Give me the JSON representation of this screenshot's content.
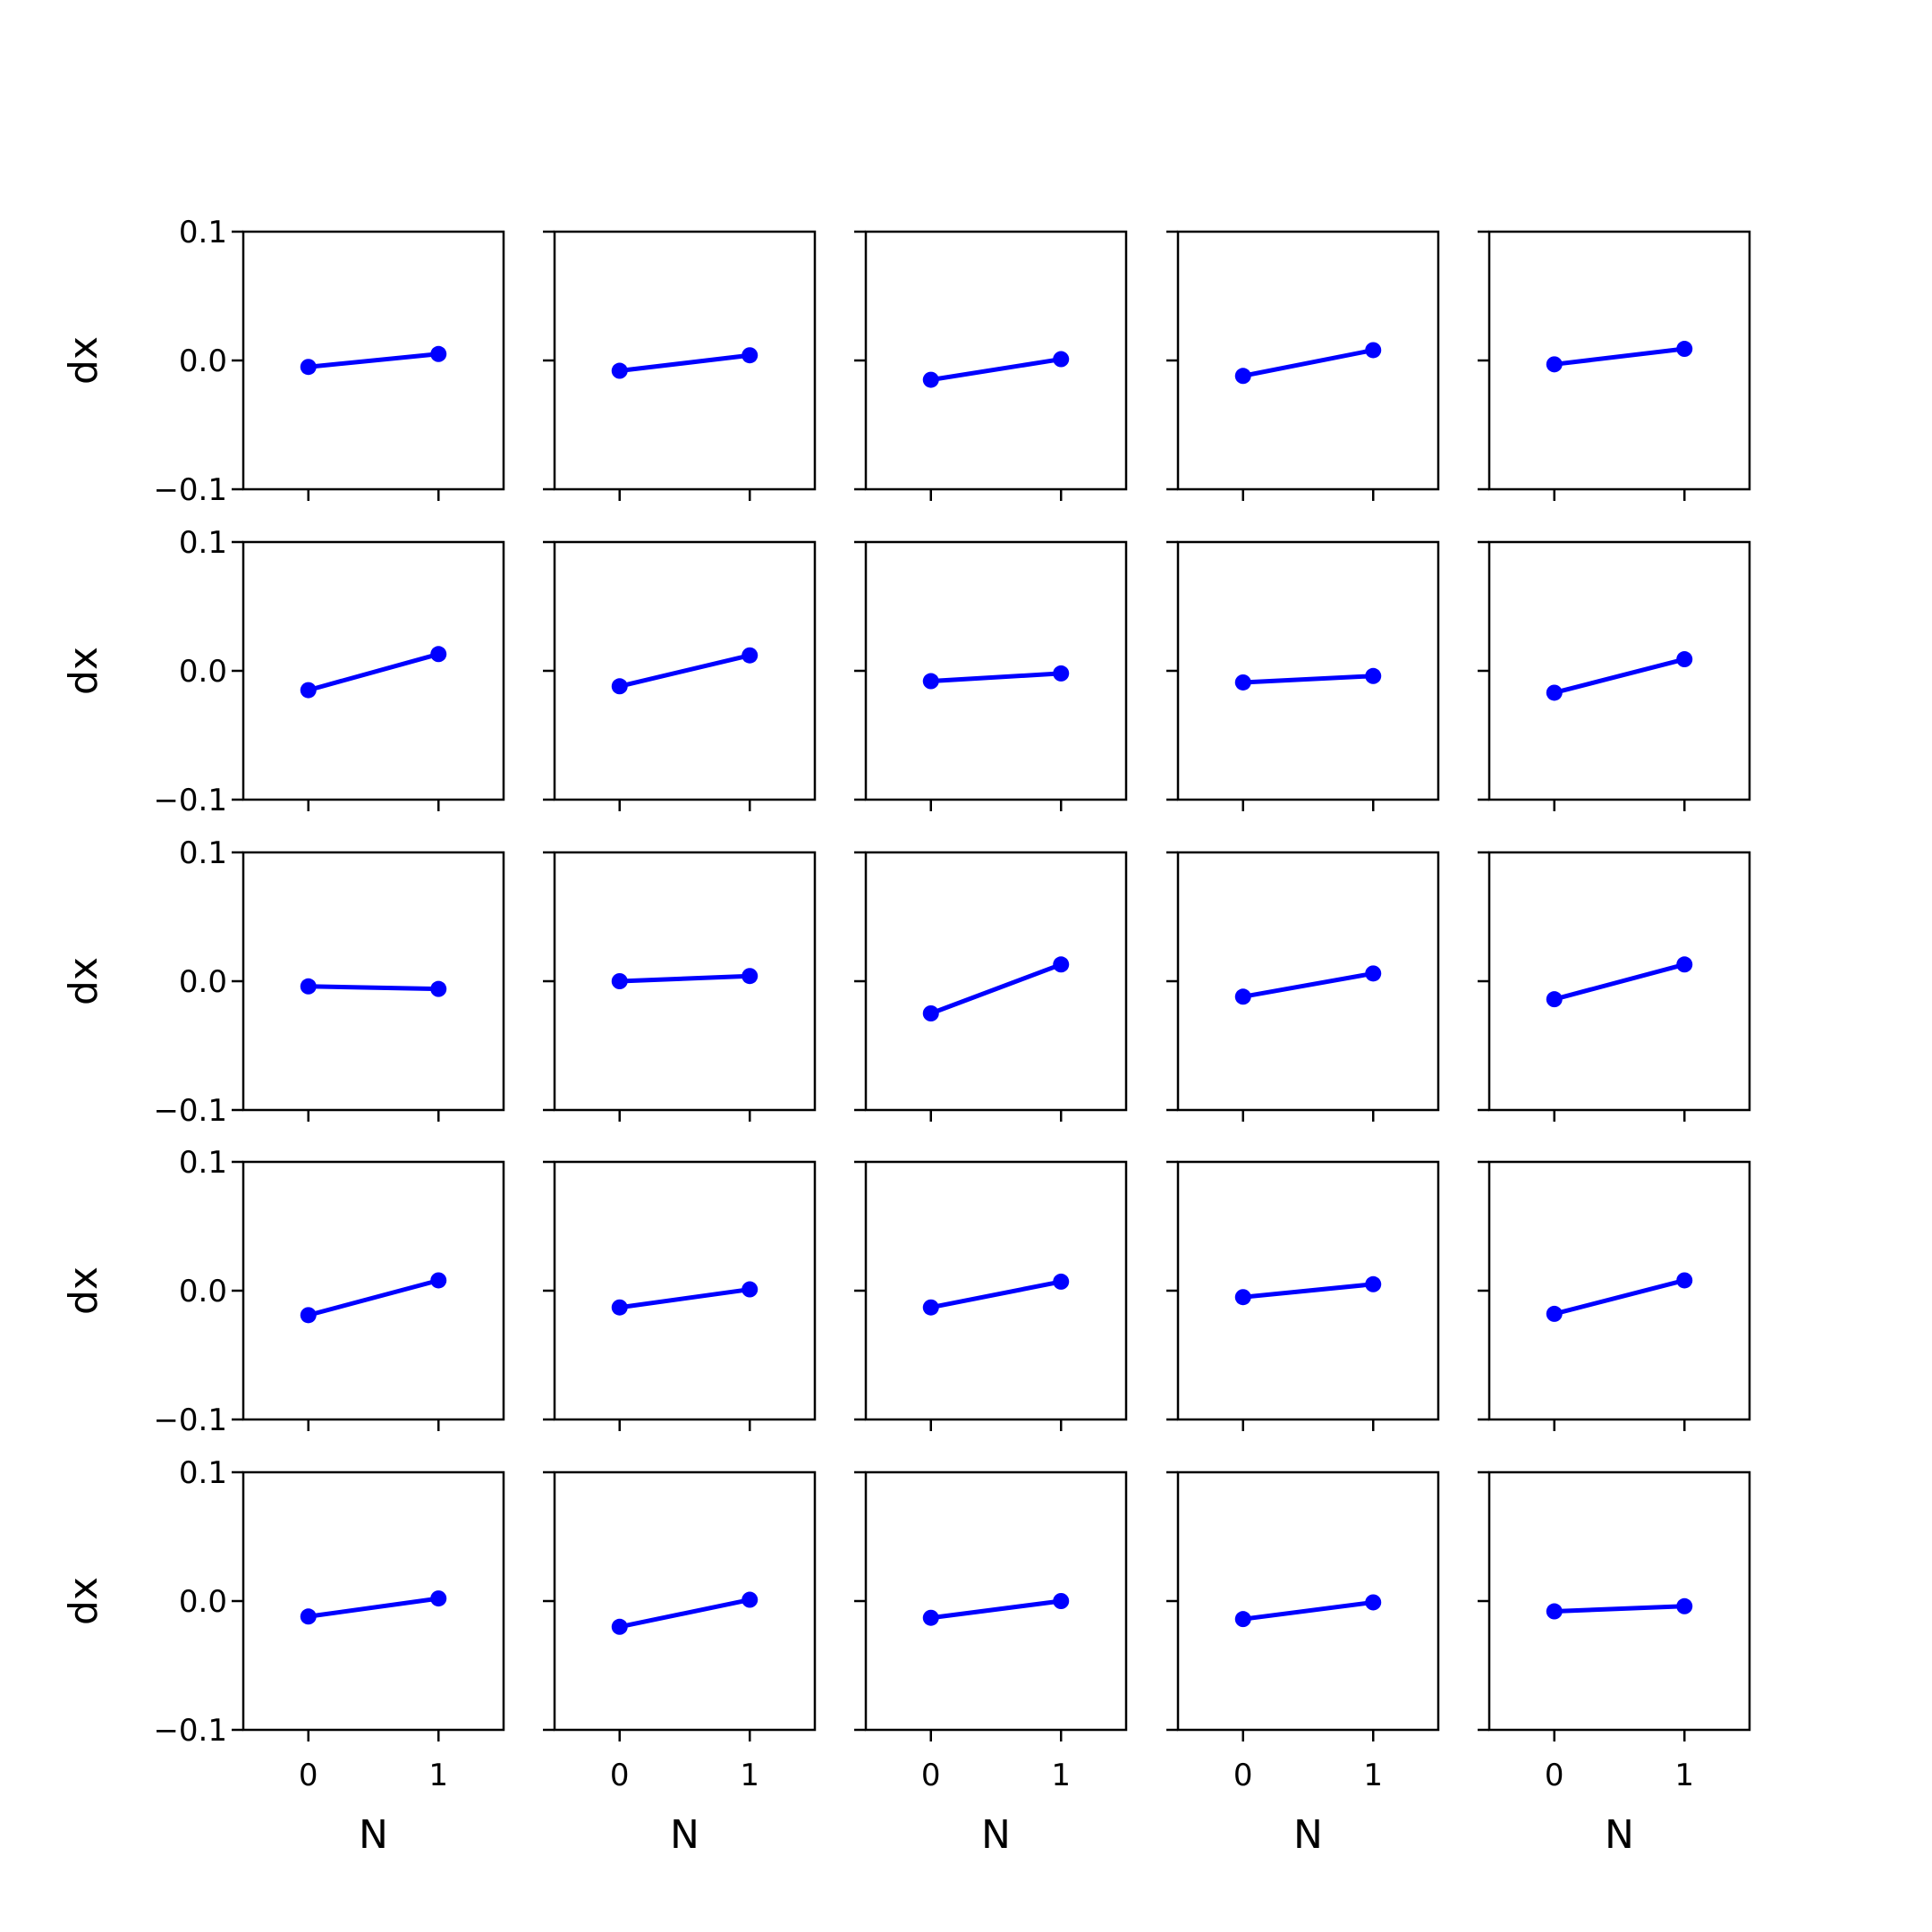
{
  "colors": {
    "series": "#0000ff",
    "frame": "#000000"
  },
  "chart_data": {
    "type": "line",
    "layout": "5x5 grid of subplots",
    "xlabel": "N",
    "ylabel": "dx",
    "xlim": [
      -0.5,
      1.5
    ],
    "ylim": [
      -0.1,
      0.1
    ],
    "xticks": [
      0,
      1
    ],
    "xtick_labels": [
      "0",
      "1"
    ],
    "yticks": [
      -0.1,
      0.0,
      0.1
    ],
    "ytick_labels": [
      "−0.1",
      "0.0",
      "0.1"
    ],
    "grid": false,
    "marker": "circle",
    "x": [
      0,
      1
    ],
    "panels": [
      {
        "row": 0,
        "col": 0,
        "y": [
          -0.005,
          0.005
        ]
      },
      {
        "row": 0,
        "col": 1,
        "y": [
          -0.008,
          0.004
        ]
      },
      {
        "row": 0,
        "col": 2,
        "y": [
          -0.015,
          0.001
        ]
      },
      {
        "row": 0,
        "col": 3,
        "y": [
          -0.012,
          0.008
        ]
      },
      {
        "row": 0,
        "col": 4,
        "y": [
          -0.003,
          0.009
        ]
      },
      {
        "row": 1,
        "col": 0,
        "y": [
          -0.015,
          0.013
        ]
      },
      {
        "row": 1,
        "col": 1,
        "y": [
          -0.012,
          0.012
        ]
      },
      {
        "row": 1,
        "col": 2,
        "y": [
          -0.008,
          -0.002
        ]
      },
      {
        "row": 1,
        "col": 3,
        "y": [
          -0.009,
          -0.004
        ]
      },
      {
        "row": 1,
        "col": 4,
        "y": [
          -0.017,
          0.009
        ]
      },
      {
        "row": 2,
        "col": 0,
        "y": [
          -0.004,
          -0.006
        ]
      },
      {
        "row": 2,
        "col": 1,
        "y": [
          0.0,
          0.004
        ]
      },
      {
        "row": 2,
        "col": 2,
        "y": [
          -0.025,
          0.013
        ]
      },
      {
        "row": 2,
        "col": 3,
        "y": [
          -0.012,
          0.006
        ]
      },
      {
        "row": 2,
        "col": 4,
        "y": [
          -0.014,
          0.013
        ]
      },
      {
        "row": 3,
        "col": 0,
        "y": [
          -0.019,
          0.008
        ]
      },
      {
        "row": 3,
        "col": 1,
        "y": [
          -0.013,
          0.001
        ]
      },
      {
        "row": 3,
        "col": 2,
        "y": [
          -0.013,
          0.007
        ]
      },
      {
        "row": 3,
        "col": 3,
        "y": [
          -0.005,
          0.005
        ]
      },
      {
        "row": 3,
        "col": 4,
        "y": [
          -0.018,
          0.008
        ]
      },
      {
        "row": 4,
        "col": 0,
        "y": [
          -0.012,
          0.002
        ]
      },
      {
        "row": 4,
        "col": 1,
        "y": [
          -0.02,
          0.001
        ]
      },
      {
        "row": 4,
        "col": 2,
        "y": [
          -0.013,
          0.0
        ]
      },
      {
        "row": 4,
        "col": 3,
        "y": [
          -0.014,
          -0.001
        ]
      },
      {
        "row": 4,
        "col": 4,
        "y": [
          -0.008,
          -0.004
        ]
      }
    ]
  }
}
